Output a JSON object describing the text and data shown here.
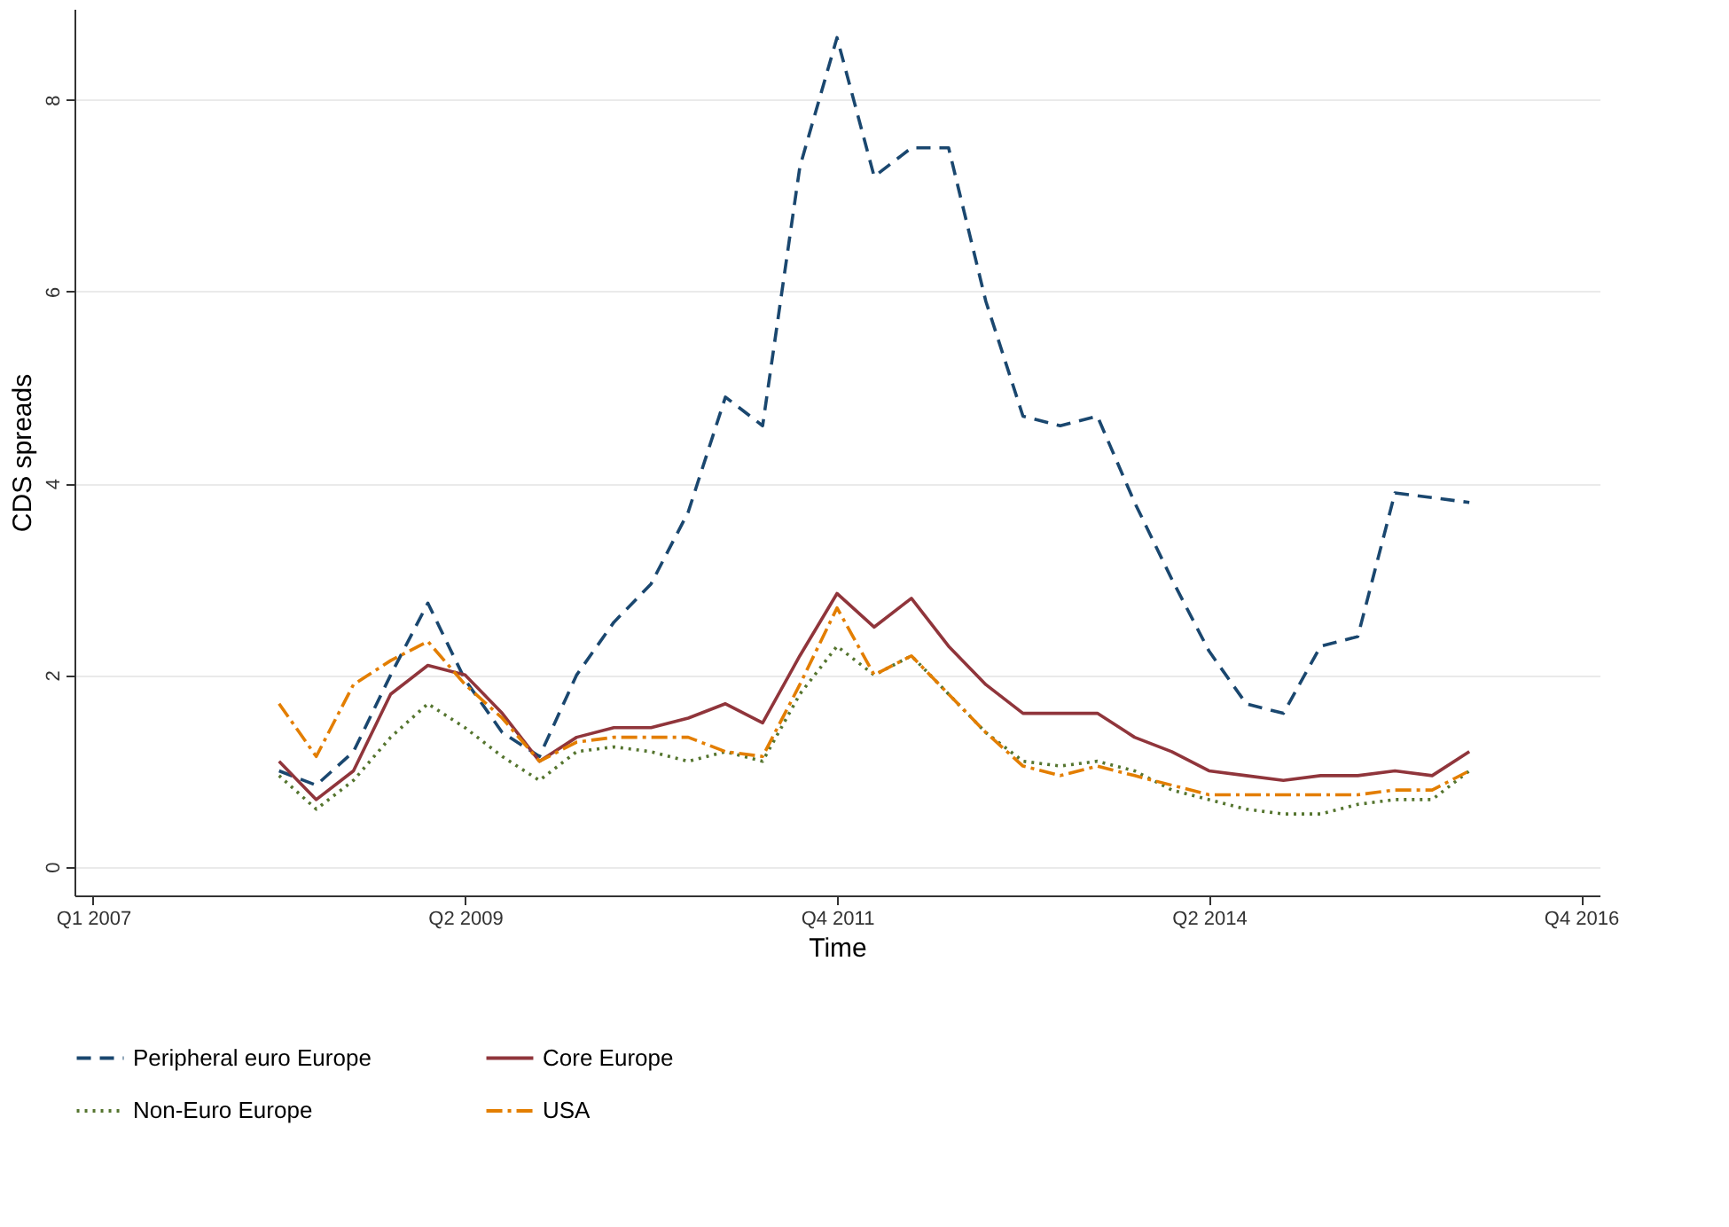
{
  "chart_data": {
    "type": "line",
    "xlabel": "Time",
    "ylabel": "CDS spreads",
    "categories": [
      "Q1 2007",
      null,
      null,
      null,
      null,
      null,
      null,
      null,
      null,
      null,
      "Q2 2009",
      null,
      null,
      null,
      null,
      null,
      null,
      null,
      null,
      null,
      "Q4 2011",
      null,
      null,
      null,
      null,
      null,
      null,
      null,
      null,
      null,
      "Q2 2014",
      null,
      null,
      null,
      null,
      null,
      null,
      null,
      null,
      null,
      "Q4 2016"
    ],
    "series": [
      {
        "name": "Peripheral euro Europe",
        "color": "#1a476f",
        "line_style": "dashed",
        "values": [
          null,
          null,
          null,
          null,
          null,
          1.0,
          0.85,
          1.2,
          2.0,
          2.75,
          1.95,
          1.4,
          1.15,
          2.0,
          2.55,
          2.95,
          3.7,
          4.9,
          4.6,
          7.3,
          8.65,
          7.2,
          7.5,
          7.5,
          5.9,
          4.7,
          4.6,
          4.7,
          3.8,
          3.0,
          2.25,
          1.7,
          1.6,
          2.3,
          2.4,
          3.9,
          3.85,
          3.8,
          null,
          null,
          null
        ]
      },
      {
        "name": "Core Europe",
        "color": "#90353b",
        "line_style": "solid",
        "values": [
          null,
          null,
          null,
          null,
          null,
          1.1,
          0.7,
          1.0,
          1.8,
          2.1,
          2.0,
          1.6,
          1.1,
          1.35,
          1.45,
          1.45,
          1.55,
          1.7,
          1.5,
          2.2,
          2.85,
          2.5,
          2.8,
          2.3,
          1.9,
          1.6,
          1.6,
          1.6,
          1.35,
          1.2,
          1.0,
          0.95,
          0.9,
          0.95,
          0.95,
          1.0,
          0.95,
          1.2,
          null,
          null,
          null
        ]
      },
      {
        "name": "Non-Euro Europe",
        "color": "#55752f",
        "line_style": "dotted",
        "values": [
          null,
          null,
          null,
          null,
          null,
          0.95,
          0.6,
          0.9,
          1.35,
          1.7,
          1.45,
          1.15,
          0.9,
          1.2,
          1.25,
          1.2,
          1.1,
          1.2,
          1.1,
          1.8,
          2.3,
          2.0,
          2.2,
          1.8,
          1.4,
          1.1,
          1.05,
          1.1,
          1.0,
          0.8,
          0.7,
          0.6,
          0.55,
          0.55,
          0.65,
          0.7,
          0.7,
          1.0,
          null,
          null,
          null
        ]
      },
      {
        "name": "USA",
        "color": "#e37e00",
        "line_style": "dashdot",
        "values": [
          null,
          null,
          null,
          null,
          null,
          1.7,
          1.15,
          1.9,
          2.15,
          2.35,
          1.9,
          1.55,
          1.1,
          1.3,
          1.35,
          1.35,
          1.35,
          1.2,
          1.15,
          1.9,
          2.7,
          2.0,
          2.2,
          1.8,
          1.4,
          1.05,
          0.95,
          1.05,
          0.95,
          0.85,
          0.75,
          0.75,
          0.75,
          0.75,
          0.75,
          0.8,
          0.8,
          1.0,
          null,
          null,
          null
        ]
      }
    ],
    "ylim": [
      -0.3,
      8.95
    ],
    "yticks": [
      0,
      2,
      4,
      6,
      8
    ],
    "grid": "y",
    "legend": "bottom"
  }
}
